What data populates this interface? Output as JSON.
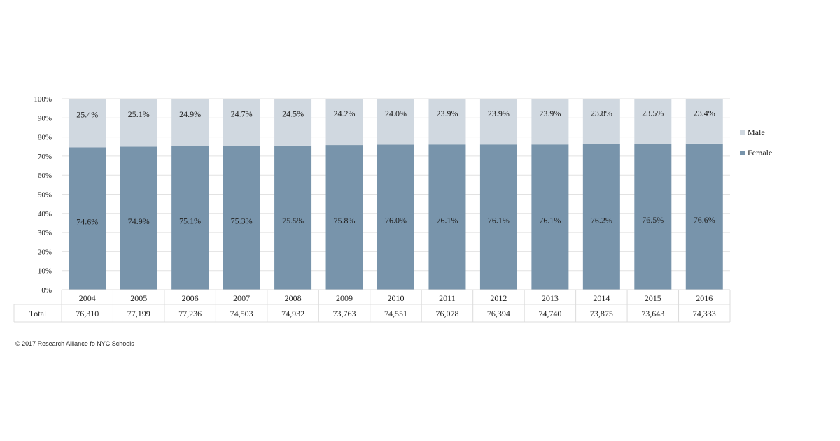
{
  "chart_data": {
    "type": "bar",
    "stacked": true,
    "title": "",
    "xlabel": "",
    "ylabel": "",
    "ylim": [
      0,
      100
    ],
    "yticks": [
      "0%",
      "10%",
      "20%",
      "30%",
      "40%",
      "50%",
      "60%",
      "70%",
      "80%",
      "90%",
      "100%"
    ],
    "categories": [
      "2004",
      "2005",
      "2006",
      "2007",
      "2008",
      "2009",
      "2010",
      "2011",
      "2012",
      "2013",
      "2014",
      "2015",
      "2016"
    ],
    "series": [
      {
        "name": "Female",
        "color": "#7894ab",
        "values": [
          74.6,
          74.9,
          75.1,
          75.3,
          75.5,
          75.8,
          76.0,
          76.1,
          76.1,
          76.1,
          76.2,
          76.5,
          76.6
        ],
        "labels": [
          "74.6%",
          "74.9%",
          "75.1%",
          "75.3%",
          "75.5%",
          "75.8%",
          "76.0%",
          "76.1%",
          "76.1%",
          "76.1%",
          "76.2%",
          "76.5%",
          "76.6%"
        ]
      },
      {
        "name": "Male",
        "color": "#d0d8e0",
        "values": [
          25.4,
          25.1,
          24.9,
          24.7,
          24.5,
          24.2,
          24.0,
          23.9,
          23.9,
          23.9,
          23.8,
          23.5,
          23.4
        ],
        "labels": [
          "25.4%",
          "25.1%",
          "24.9%",
          "24.7%",
          "24.5%",
          "24.2%",
          "24.0%",
          "23.9%",
          "23.9%",
          "23.9%",
          "23.8%",
          "23.5%",
          "23.4%"
        ]
      }
    ],
    "legend": {
      "placement": "right",
      "order": [
        "Male",
        "Female"
      ]
    },
    "grid": true,
    "table": {
      "row_label": "Total",
      "values": [
        "76,310",
        "77,199",
        "77,236",
        "74,503",
        "74,932",
        "73,763",
        "74,551",
        "76,078",
        "76,394",
        "74,740",
        "73,875",
        "73,643",
        "74,333"
      ]
    }
  },
  "footer": "© 2017 Research Alliance fo NYC Schools"
}
